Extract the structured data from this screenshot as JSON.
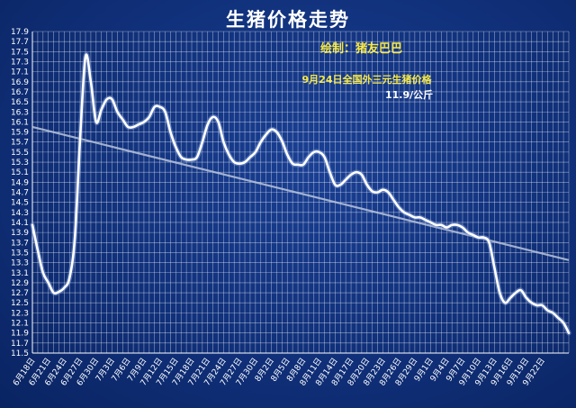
{
  "chart_data": {
    "type": "line",
    "title": "生猪价格走势",
    "credit": "绘制：猪友巴巴",
    "annotation": {
      "line1": "9月24日全国外三元生猪价格",
      "line2": "11.9/公斤"
    },
    "ylim": [
      11.5,
      17.9
    ],
    "yticks": [
      17.9,
      17.7,
      17.5,
      17.3,
      17.1,
      16.9,
      16.7,
      16.5,
      16.3,
      16.1,
      15.9,
      15.7,
      15.5,
      15.3,
      15.1,
      14.9,
      14.7,
      14.5,
      14.3,
      14.1,
      13.9,
      13.7,
      13.5,
      13.3,
      13.1,
      12.9,
      12.7,
      12.5,
      12.3,
      12.1,
      11.9,
      11.7,
      11.5
    ],
    "xtick_labels": [
      "6月18日",
      "6月21日",
      "6月24日",
      "6月27日",
      "6月30日",
      "7月3日",
      "7月6日",
      "7月9日",
      "7月12日",
      "7月15日",
      "7月18日",
      "7月21日",
      "7月24日",
      "7月27日",
      "7月30日",
      "8月2日",
      "8月5日",
      "8月8日",
      "8月11日",
      "8月14日",
      "8月17日",
      "8月20日",
      "8月23日",
      "8月26日",
      "8月29日",
      "9月1日",
      "9月4日",
      "9月7日",
      "9月10日",
      "9月13日",
      "9月16日",
      "9月19日",
      "9月22日"
    ],
    "series": [
      {
        "values": [
          14.05,
          13.55,
          13.1,
          12.9,
          12.7,
          12.72,
          12.8,
          13.0,
          13.8,
          15.8,
          17.4,
          16.9,
          16.1,
          16.35,
          16.55,
          16.55,
          16.3,
          16.15,
          16.0,
          16.0,
          16.05,
          16.1,
          16.2,
          16.4,
          16.4,
          16.3,
          15.9,
          15.6,
          15.4,
          15.35,
          15.35,
          15.4,
          15.7,
          16.05,
          16.2,
          16.1,
          15.7,
          15.45,
          15.3,
          15.27,
          15.3,
          15.4,
          15.5,
          15.7,
          15.85,
          15.95,
          15.9,
          15.72,
          15.45,
          15.27,
          15.25,
          15.25,
          15.4,
          15.5,
          15.5,
          15.4,
          15.1,
          14.85,
          14.85,
          14.95,
          15.05,
          15.1,
          15.05,
          14.85,
          14.72,
          14.7,
          14.75,
          14.7,
          14.55,
          14.4,
          14.3,
          14.25,
          14.2,
          14.2,
          14.15,
          14.1,
          14.05,
          14.05,
          14.0,
          14.05,
          14.05,
          14.0,
          13.9,
          13.85,
          13.8,
          13.8,
          13.7,
          13.2,
          12.7,
          12.5,
          12.6,
          12.7,
          12.75,
          12.6,
          12.5,
          12.45,
          12.45,
          12.35,
          12.3,
          12.2,
          12.1,
          11.9
        ]
      }
    ],
    "trendline": {
      "start": 16.0,
      "end": 13.35
    },
    "colors": {
      "line": "#ffffff",
      "trend": "#b8c4dc",
      "grid": "#ffffff",
      "background": "#13347e"
    }
  }
}
